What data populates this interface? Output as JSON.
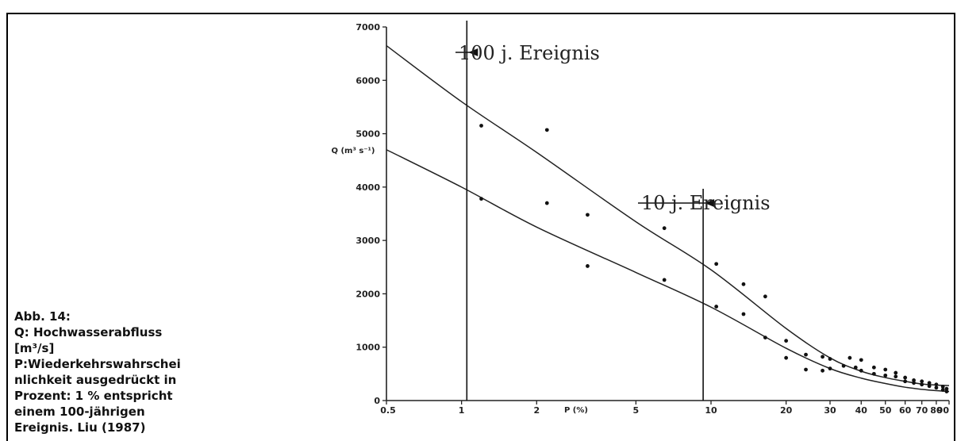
{
  "caption": {
    "lines": [
      "Abb. 14:",
      "Q: Hochwasserabfluss",
      "[m³/s]",
      "P:Wiederkehrswahrschei",
      "nlichkeit ausgedrückt in",
      "Prozent: 1 % entspricht",
      "einem 100-jährigen",
      "Ereignis. Liu (1987)"
    ]
  },
  "chart_data": {
    "type": "scatter",
    "title": "",
    "xlabel": "P (%)",
    "ylabel": "Q (m³ s⁻¹)",
    "xscale": "log",
    "xlim": [
      0.5,
      90
    ],
    "ylim": [
      0,
      7000
    ],
    "x_ticks": [
      0.5,
      1,
      2,
      5,
      10,
      20,
      30,
      40,
      50,
      60,
      70,
      80,
      90
    ],
    "x_tick_labels": [
      "0.5",
      "1",
      "2",
      "5",
      "10",
      "20",
      "30",
      "40",
      "50",
      "60",
      "70",
      "80",
      "90"
    ],
    "y_ticks": [
      0,
      1000,
      2000,
      3000,
      4000,
      5000,
      6000,
      7000
    ],
    "y_tick_labels": [
      "0",
      "1000",
      "2000",
      "3000",
      "4000",
      "5000",
      "6000",
      "7000"
    ],
    "grid": false,
    "series": [
      {
        "points": [
          [
            1.2,
            5150
          ],
          [
            2.2,
            5070
          ],
          [
            2.2,
            3700
          ],
          [
            3.2,
            3480
          ],
          [
            6.5,
            3230
          ],
          [
            10.5,
            2560
          ],
          [
            13.5,
            2180
          ],
          [
            16.5,
            1950
          ],
          [
            20,
            1120
          ],
          [
            24,
            860
          ],
          [
            28,
            820
          ],
          [
            30,
            780
          ],
          [
            36,
            800
          ],
          [
            40,
            760
          ],
          [
            45,
            620
          ],
          [
            50,
            580
          ],
          [
            55,
            520
          ],
          [
            60,
            430
          ],
          [
            65,
            380
          ],
          [
            70,
            360
          ],
          [
            75,
            330
          ],
          [
            80,
            300
          ],
          [
            85,
            260
          ],
          [
            88,
            220
          ]
        ]
      },
      {
        "points": [
          [
            1.2,
            3780
          ],
          [
            3.2,
            2520
          ],
          [
            6.5,
            2260
          ],
          [
            10.5,
            1760
          ],
          [
            13.5,
            1620
          ],
          [
            16.5,
            1180
          ],
          [
            20,
            800
          ],
          [
            24,
            580
          ],
          [
            28,
            560
          ],
          [
            30,
            600
          ],
          [
            34,
            650
          ],
          [
            38,
            620
          ],
          [
            40,
            560
          ],
          [
            45,
            500
          ],
          [
            50,
            470
          ],
          [
            55,
            450
          ],
          [
            60,
            360
          ],
          [
            65,
            330
          ],
          [
            70,
            300
          ],
          [
            75,
            270
          ],
          [
            80,
            240
          ],
          [
            85,
            200
          ],
          [
            88,
            170
          ]
        ]
      }
    ],
    "curves": [
      {
        "points": [
          [
            0.5,
            6650
          ],
          [
            1,
            5600
          ],
          [
            2,
            4650
          ],
          [
            5,
            3350
          ],
          [
            10,
            2450
          ],
          [
            20,
            1350
          ],
          [
            30,
            800
          ],
          [
            40,
            550
          ],
          [
            50,
            430
          ],
          [
            60,
            360
          ],
          [
            70,
            310
          ],
          [
            80,
            290
          ],
          [
            90,
            280
          ]
        ]
      },
      {
        "points": [
          [
            0.5,
            4700
          ],
          [
            1,
            4000
          ],
          [
            2,
            3250
          ],
          [
            5,
            2400
          ],
          [
            10,
            1750
          ],
          [
            20,
            980
          ],
          [
            30,
            600
          ],
          [
            40,
            420
          ],
          [
            50,
            320
          ],
          [
            60,
            250
          ],
          [
            70,
            210
          ],
          [
            80,
            185
          ],
          [
            90,
            170
          ]
        ]
      }
    ],
    "vlines": [
      {
        "x": 1.05,
        "label": "100 j. Ereignis"
      },
      {
        "x": 9.3,
        "label": "10 j. Ereignis"
      }
    ]
  }
}
